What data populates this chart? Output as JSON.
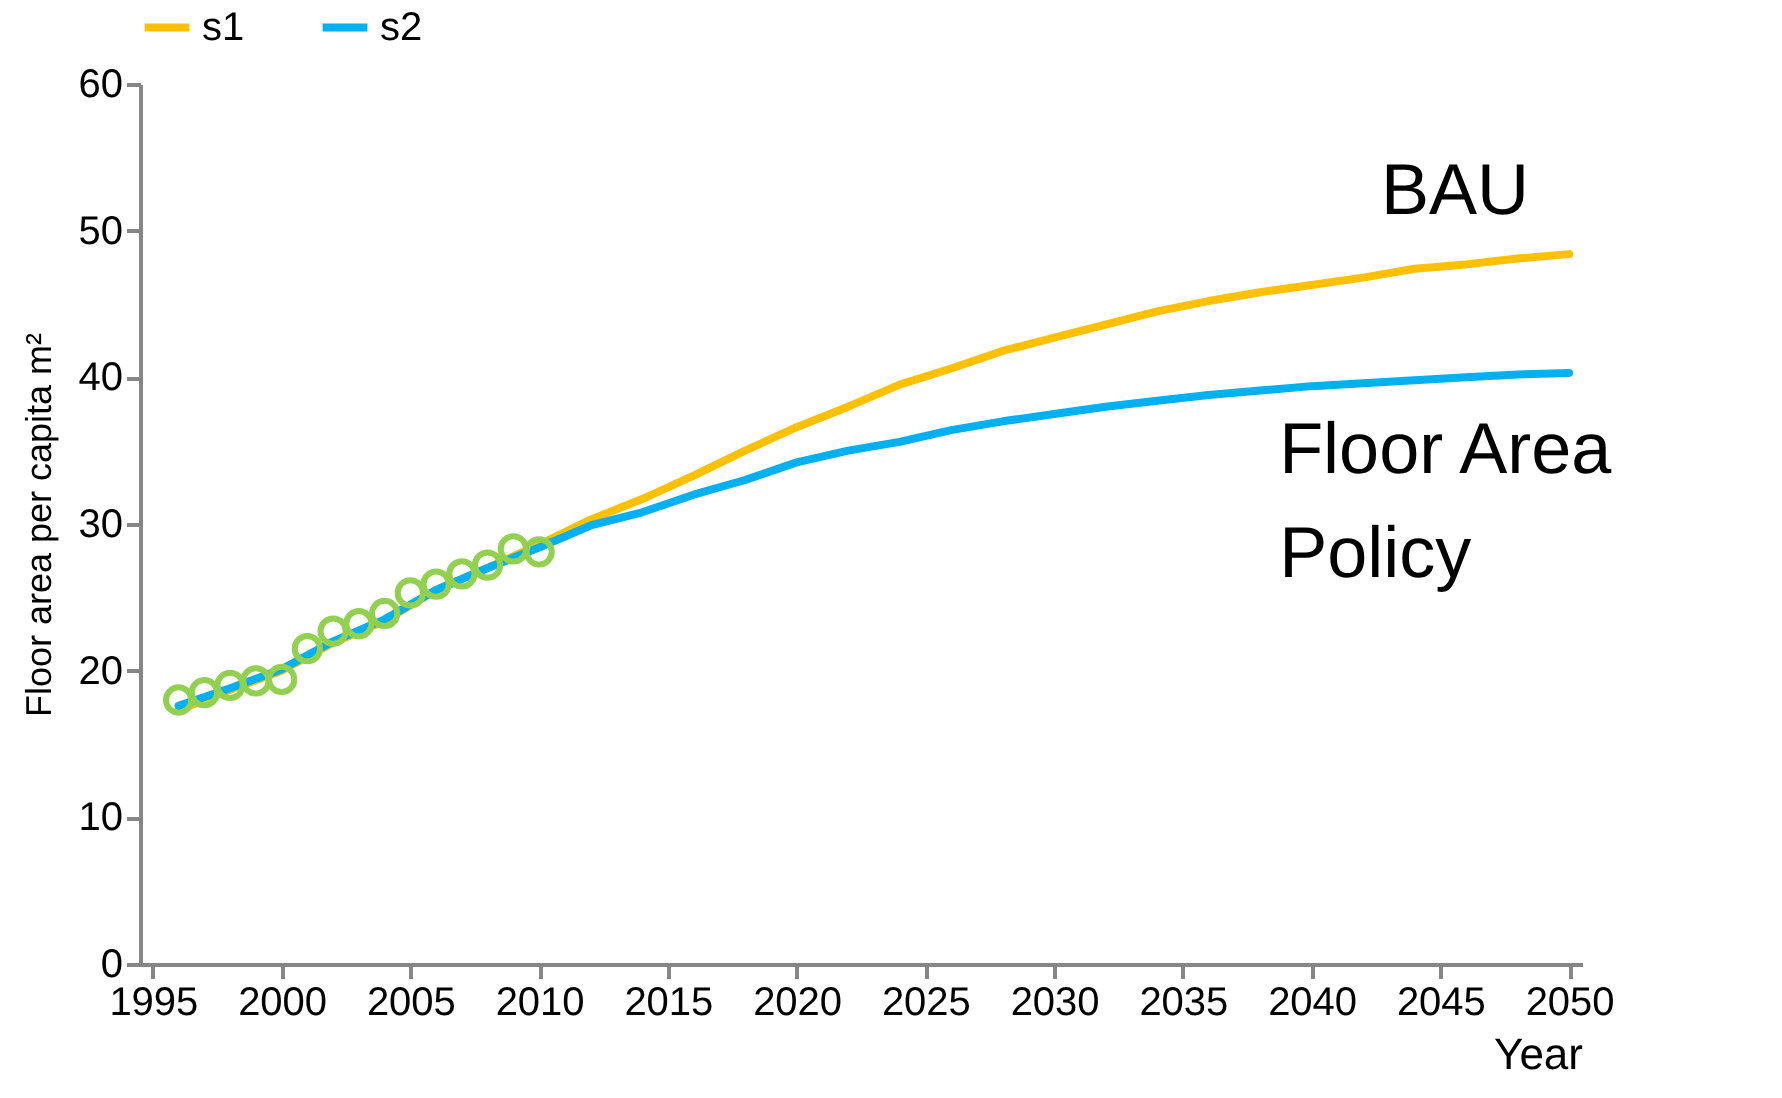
{
  "chart_data": {
    "type": "line",
    "xlabel": "Year",
    "ylabel": "Floor area per capita m²",
    "xlim": [
      1994.5,
      2050.5
    ],
    "xticks": [
      1995,
      2000,
      2005,
      2010,
      2015,
      2020,
      2025,
      2030,
      2035,
      2040,
      2045,
      2050
    ],
    "ylim": [
      0,
      60
    ],
    "yticks": [
      0,
      10,
      20,
      30,
      40,
      50,
      60
    ],
    "grid": false,
    "legend": "top",
    "line_style": "solid",
    "annotations": [
      "BAU",
      "Floor Area Policy"
    ],
    "series": [
      {
        "name": "s1",
        "color": "#ffc000",
        "x": [
          1996,
          1998,
          2000,
          2002,
          2004,
          2006,
          2008,
          2010,
          2012,
          2014,
          2016,
          2018,
          2020,
          2022,
          2024,
          2026,
          2028,
          2030,
          2032,
          2034,
          2036,
          2038,
          2040,
          2042,
          2044,
          2046,
          2048,
          2050
        ],
        "values": [
          17.3,
          18.7,
          20.0,
          21.9,
          23.4,
          25.5,
          27.0,
          28.6,
          30.3,
          31.7,
          33.3,
          35.0,
          36.6,
          38.0,
          39.5,
          40.6,
          41.8,
          42.7,
          43.6,
          44.5,
          45.2,
          45.8,
          46.3,
          46.8,
          47.4,
          47.7,
          48.1,
          48.4
        ]
      },
      {
        "name": "s2",
        "color": "#00b0f0",
        "x": [
          1996,
          1998,
          2000,
          2002,
          2004,
          2006,
          2008,
          2010,
          2012,
          2014,
          2016,
          2018,
          2020,
          2022,
          2024,
          2026,
          2028,
          2030,
          2032,
          2034,
          2036,
          2038,
          2040,
          2042,
          2044,
          2046,
          2048,
          2050
        ],
        "values": [
          17.6,
          18.8,
          20.1,
          22.0,
          23.5,
          25.5,
          27.0,
          28.4,
          29.9,
          30.8,
          32.0,
          33.0,
          34.2,
          35.0,
          35.6,
          36.4,
          37.0,
          37.5,
          38.0,
          38.4,
          38.8,
          39.1,
          39.4,
          39.6,
          39.8,
          40.0,
          40.2,
          40.3
        ]
      },
      {
        "type": "scatter",
        "marker": "circle",
        "color": "#92d050",
        "x": [
          1996,
          1997,
          1998,
          1999,
          2000,
          2001,
          2002,
          2003,
          2004,
          2005,
          2006,
          2007,
          2008,
          2009,
          2010
        ],
        "values": [
          18.0,
          18.5,
          19.0,
          19.3,
          19.4,
          21.5,
          22.7,
          23.2,
          23.9,
          25.3,
          25.9,
          26.6,
          27.2,
          28.3,
          28.1
        ]
      }
    ]
  }
}
